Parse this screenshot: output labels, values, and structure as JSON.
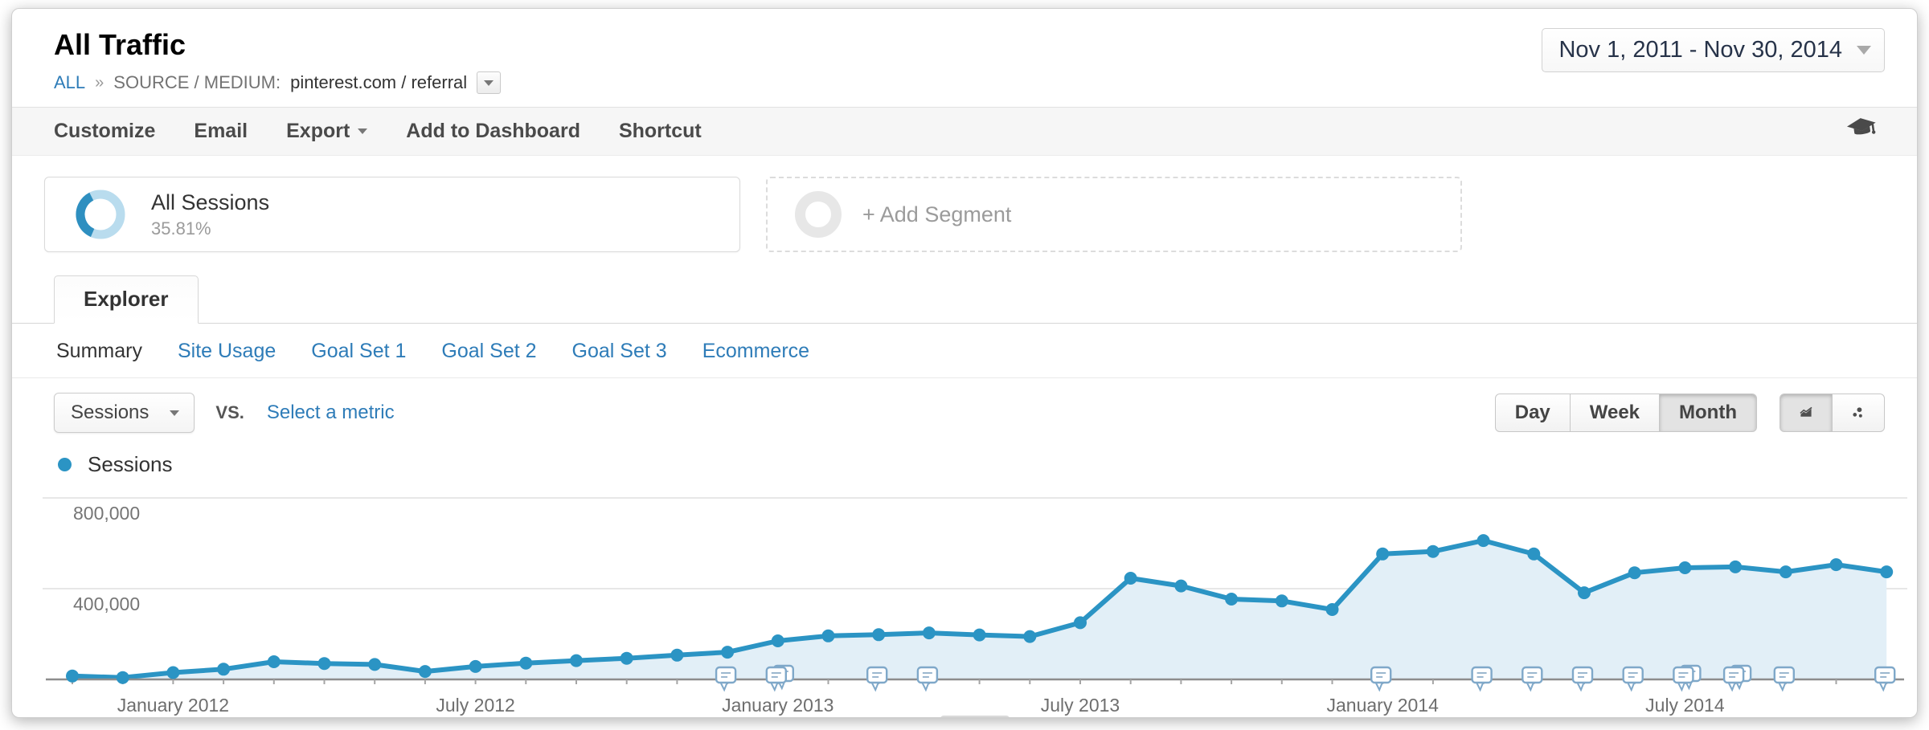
{
  "header": {
    "title": "All Traffic",
    "breadcrumb": {
      "root": "ALL",
      "separator": "»",
      "dimension_label": "SOURCE / MEDIUM:",
      "dimension_value": "pinterest.com / referral"
    },
    "date_range": "Nov 1, 2011 - Nov 30, 2014"
  },
  "toolbar": {
    "customize_label": "Customize",
    "email_label": "Email",
    "export_label": "Export",
    "add_to_dashboard_label": "Add to Dashboard",
    "shortcut_label": "Shortcut"
  },
  "segments": {
    "all_sessions": {
      "name": "All Sessions",
      "percent": "35.81%"
    },
    "add_segment_label": "+ Add Segment"
  },
  "tabs": {
    "explorer_label": "Explorer",
    "subtabs": [
      {
        "label": "Summary",
        "active": true
      },
      {
        "label": "Site Usage",
        "active": false
      },
      {
        "label": "Goal Set 1",
        "active": false
      },
      {
        "label": "Goal Set 2",
        "active": false
      },
      {
        "label": "Goal Set 3",
        "active": false
      },
      {
        "label": "Ecommerce",
        "active": false
      }
    ]
  },
  "controls": {
    "metric_selector_value": "Sessions",
    "vs_label": "VS.",
    "select_metric_label": "Select a metric",
    "granularity": [
      {
        "label": "Day",
        "active": false
      },
      {
        "label": "Week",
        "active": false
      },
      {
        "label": "Month",
        "active": true
      }
    ]
  },
  "legend": {
    "series_label": "Sessions"
  },
  "chart_data": {
    "type": "area",
    "title": "Sessions by month",
    "series_name": "Sessions",
    "x": [
      "Nov 2011",
      "Dec 2011",
      "Jan 2012",
      "Feb 2012",
      "Mar 2012",
      "Apr 2012",
      "May 2012",
      "Jun 2012",
      "Jul 2012",
      "Aug 2012",
      "Sep 2012",
      "Oct 2012",
      "Nov 2012",
      "Dec 2012",
      "Jan 2013",
      "Feb 2013",
      "Mar 2013",
      "Apr 2013",
      "May 2013",
      "Jun 2013",
      "Jul 2013",
      "Aug 2013",
      "Sep 2013",
      "Oct 2013",
      "Nov 2013",
      "Dec 2013",
      "Jan 2014",
      "Feb 2014",
      "Mar 2014",
      "Apr 2014",
      "May 2014",
      "Jun 2014",
      "Jul 2014",
      "Aug 2014",
      "Sep 2014",
      "Oct 2014",
      "Nov 2014"
    ],
    "values": [
      15000,
      8000,
      30000,
      45000,
      78000,
      70000,
      66000,
      35000,
      57000,
      72000,
      83000,
      93000,
      107000,
      120000,
      170000,
      192000,
      197000,
      205000,
      196000,
      189000,
      250000,
      446000,
      412000,
      354000,
      346000,
      308000,
      553000,
      564000,
      612000,
      553000,
      382000,
      470000,
      492000,
      496000,
      474000,
      506000,
      474000
    ],
    "ylim": [
      0,
      800000
    ],
    "yticks": [
      {
        "value": 400000,
        "label": "400,000"
      },
      {
        "value": 800000,
        "label": "800,000"
      }
    ],
    "xtick_labels": [
      {
        "index": 2,
        "label": "January 2012"
      },
      {
        "index": 8,
        "label": "July 2012"
      },
      {
        "index": 14,
        "label": "January 2013"
      },
      {
        "index": 20,
        "label": "July 2013"
      },
      {
        "index": 26,
        "label": "January 2014"
      },
      {
        "index": 32,
        "label": "July 2014"
      }
    ],
    "annotation_months": [
      13,
      14,
      16,
      17,
      26,
      28,
      29,
      30,
      31,
      32,
      33,
      34,
      36
    ],
    "annotation_doubles": [
      14,
      32,
      33
    ],
    "line_color": "#2b94c4",
    "fill_color": "#e2eff7",
    "grid": true,
    "legend_position": "top-left"
  }
}
